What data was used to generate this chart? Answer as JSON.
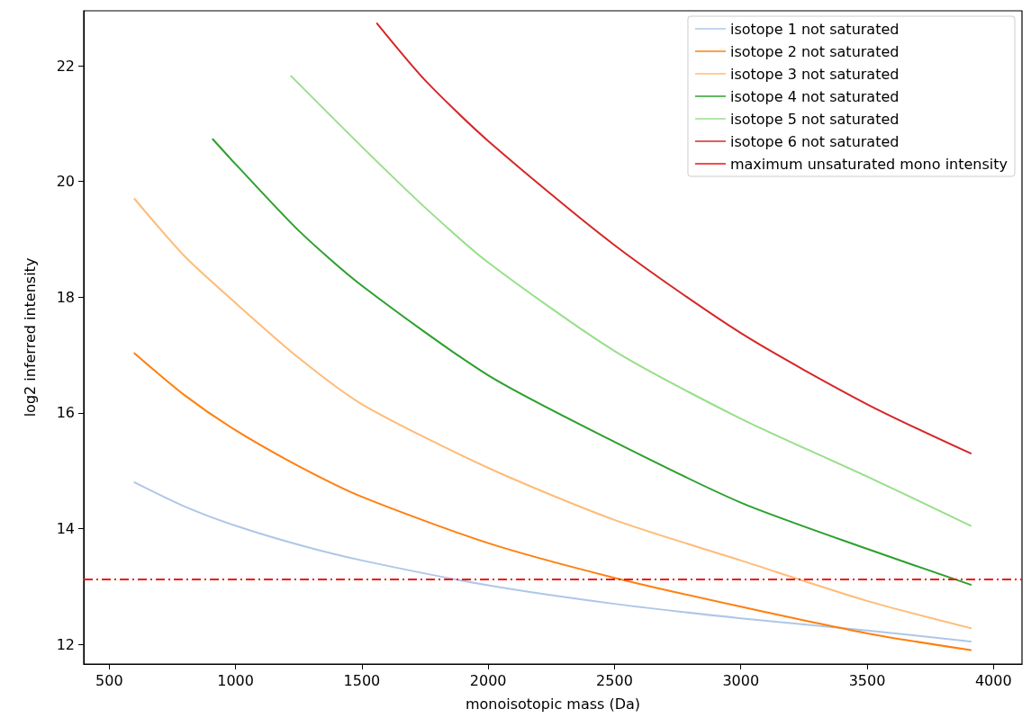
{
  "chart_data": {
    "type": "line",
    "xlabel": "monoisotopic mass (Da)",
    "ylabel": "log2 inferred intensity",
    "xlim": [
      399,
      4113
    ],
    "ylim": [
      11.66,
      22.95
    ],
    "xticks": [
      500,
      1000,
      1500,
      2000,
      2500,
      3000,
      3500,
      4000
    ],
    "yticks": [
      12,
      14,
      16,
      18,
      20,
      22
    ],
    "grid": false,
    "legend": "top right",
    "marker": "none",
    "line_style": "solid",
    "series": [
      {
        "name": "isotope 1 not saturated",
        "color": "#aec7e8",
        "x": [
          600,
          800,
          1000,
          1250,
          1500,
          2000,
          2500,
          3000,
          3500,
          3910
        ],
        "values": [
          14.8,
          14.38,
          14.05,
          13.72,
          13.45,
          13.02,
          12.7,
          12.45,
          12.24,
          12.05
        ]
      },
      {
        "name": "isotope 2 not saturated",
        "color": "#ff7f0e",
        "x": [
          600,
          800,
          1000,
          1250,
          1500,
          2000,
          2500,
          3000,
          3500,
          3910
        ],
        "values": [
          17.03,
          16.3,
          15.7,
          15.08,
          14.55,
          13.75,
          13.15,
          12.65,
          12.19,
          11.9
        ]
      },
      {
        "name": "isotope 3 not saturated",
        "color": "#ffbb78",
        "x": [
          600,
          800,
          1000,
          1250,
          1500,
          2000,
          2500,
          3000,
          3500,
          3910
        ],
        "values": [
          19.7,
          18.7,
          17.9,
          16.95,
          16.15,
          15.05,
          14.15,
          13.45,
          12.75,
          12.28
        ]
      },
      {
        "name": "isotope 4 not saturated",
        "color": "#2ca02c",
        "x": [
          910,
          1000,
          1250,
          1500,
          2000,
          2500,
          3000,
          3500,
          3910
        ],
        "values": [
          20.73,
          20.3,
          19.15,
          18.2,
          16.65,
          15.5,
          14.45,
          13.65,
          13.03
        ]
      },
      {
        "name": "isotope 5 not saturated",
        "color": "#98df8a",
        "x": [
          1220,
          1500,
          1750,
          2000,
          2500,
          3000,
          3500,
          3910
        ],
        "values": [
          21.82,
          20.6,
          19.55,
          18.6,
          17.07,
          15.9,
          14.9,
          14.05
        ]
      },
      {
        "name": "isotope 6 not saturated",
        "color": "#d62728",
        "x": [
          1560,
          1750,
          2000,
          2500,
          3000,
          3500,
          3910
        ],
        "values": [
          22.73,
          21.75,
          20.7,
          18.9,
          17.38,
          16.15,
          15.3
        ]
      }
    ],
    "ref_lines": [
      {
        "axis": "y",
        "value": 13.12,
        "label": "maximum unsaturated mono intensity",
        "color": "#ee1111",
        "line_style": "dashdot"
      }
    ]
  }
}
